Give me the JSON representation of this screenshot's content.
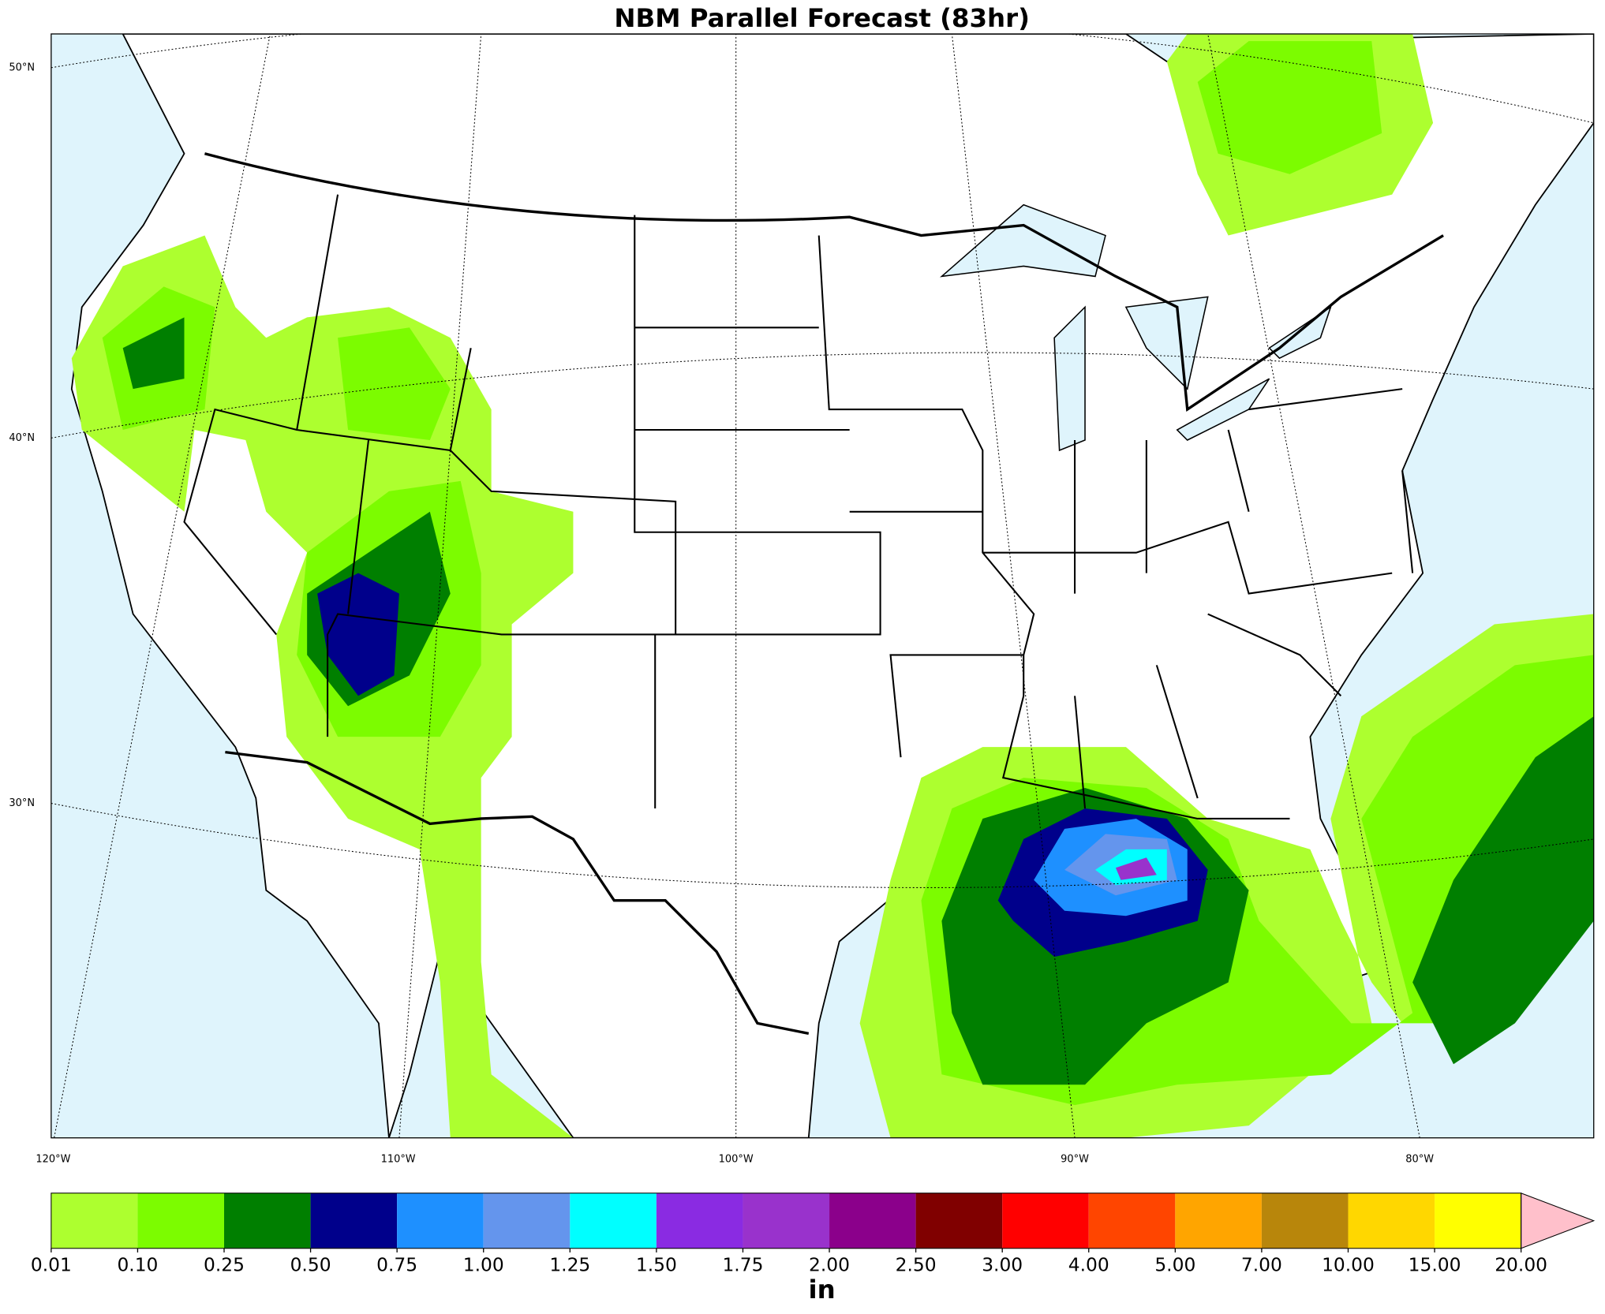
{
  "title": "NBM Parallel Forecast (83hr)",
  "map": {
    "lat_labels": [
      "50°N",
      "40°N",
      "30°N"
    ],
    "lon_labels": [
      "120°W",
      "110°W",
      "100°W",
      "90°W",
      "80°W"
    ]
  },
  "colorbar": {
    "levels": [
      "0.01",
      "0.10",
      "0.25",
      "0.50",
      "0.75",
      "1.00",
      "1.25",
      "1.50",
      "1.75",
      "2.00",
      "2.50",
      "3.00",
      "4.00",
      "5.00",
      "7.00",
      "10.00",
      "15.00",
      "20.00"
    ],
    "colors": [
      "#adff2f",
      "#7cfc00",
      "#007f00",
      "#00008b",
      "#1e90ff",
      "#6495ed",
      "#00ffff",
      "#8a2be2",
      "#9932cc",
      "#8b008b",
      "#800000",
      "#ff0000",
      "#ff4500",
      "#ffa500",
      "#b8860b",
      "#ffd700",
      "#ffff00"
    ],
    "extend_color": "#ffc0cb",
    "unit": "in"
  }
}
